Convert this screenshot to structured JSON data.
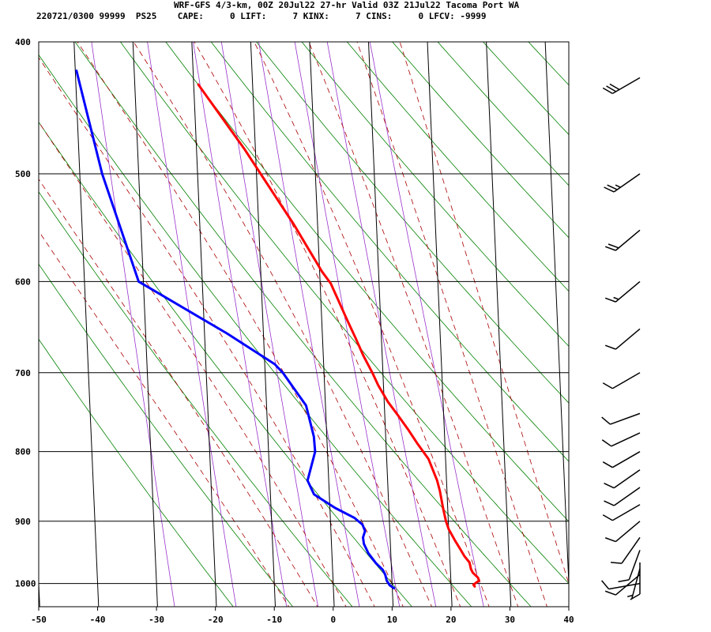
{
  "header": {
    "title": "WRF-GFS 4/3-km, 00Z 20Jul22 27-hr Valid 03Z 21Jul22 Tacoma Port WA",
    "subtitle": "220721/0300 99999  PS25    CAPE:     0 LIFT:     7 KINX:     7 CINS:     0 LFCV: -9999"
  },
  "chart_data": {
    "type": "line",
    "skew_t": true,
    "x_axis": {
      "range": [
        -50,
        40
      ],
      "ticks": [
        -50,
        -40,
        -30,
        -20,
        -10,
        0,
        10,
        20,
        30,
        40
      ]
    },
    "y_axis": {
      "scale": "log-pressure",
      "range": [
        1040,
        400
      ],
      "ticks": [
        400,
        500,
        600,
        700,
        800,
        900,
        1000
      ]
    },
    "grid": true,
    "series": [
      {
        "color": "#ff0000",
        "points": [
          [
            1005,
            24.0
          ],
          [
            1002,
            23.8
          ],
          [
            995,
            24.8
          ],
          [
            990,
            24.6
          ],
          [
            982,
            23.8
          ],
          [
            976,
            23.5
          ],
          [
            965,
            23.3
          ],
          [
            955,
            22.5
          ],
          [
            943,
            21.8
          ],
          [
            930,
            21.0
          ],
          [
            912,
            20.0
          ],
          [
            900,
            19.6
          ],
          [
            880,
            19.2
          ],
          [
            855,
            18.8
          ],
          [
            840,
            18.4
          ],
          [
            810,
            17.1
          ],
          [
            790,
            15.4
          ],
          [
            770,
            13.8
          ],
          [
            752,
            12.2
          ],
          [
            735,
            10.6
          ],
          [
            715,
            9.1
          ],
          [
            700,
            8.2
          ],
          [
            680,
            6.8
          ],
          [
            660,
            5.6
          ],
          [
            640,
            4.3
          ],
          [
            620,
            3.0
          ],
          [
            602,
            1.8
          ],
          [
            590,
            0.4
          ],
          [
            560,
            -2.5
          ],
          [
            545,
            -4.0
          ],
          [
            525,
            -6.3
          ],
          [
            500,
            -9.3
          ],
          [
            480,
            -11.8
          ],
          [
            455,
            -15.4
          ],
          [
            430,
            -19.2
          ]
        ]
      },
      {
        "color": "#0000ff",
        "points": [
          [
            1008,
            10.3
          ],
          [
            1003,
            9.6
          ],
          [
            995,
            9.1
          ],
          [
            985,
            8.9
          ],
          [
            977,
            8.5
          ],
          [
            966,
            7.4
          ],
          [
            950,
            6.2
          ],
          [
            935,
            5.5
          ],
          [
            925,
            5.4
          ],
          [
            915,
            5.8
          ],
          [
            905,
            5.4
          ],
          [
            895,
            4.1
          ],
          [
            880,
            0.9
          ],
          [
            860,
            -2.6
          ],
          [
            840,
            -3.6
          ],
          [
            800,
            -2.1
          ],
          [
            780,
            -2.2
          ],
          [
            740,
            -3.3
          ],
          [
            700,
            -7.0
          ],
          [
            690,
            -8.3
          ],
          [
            655,
            -16.2
          ],
          [
            600,
            -30.8
          ],
          [
            500,
            -36.2
          ],
          [
            420,
            -39.8
          ]
        ]
      }
    ],
    "isotherms": [
      -50,
      -40,
      -30,
      -20,
      -10,
      0,
      10,
      20,
      30,
      40
    ],
    "mixing_ratio_lines": [
      0.4,
      1,
      2,
      3,
      5,
      8,
      12,
      20
    ],
    "dry_adiabats": [
      -20,
      -10,
      0,
      10,
      20,
      30,
      40,
      50,
      60,
      70,
      80,
      90,
      100,
      110,
      120,
      130,
      140,
      150,
      160,
      170
    ],
    "moist_adiabats": [
      -10,
      -5,
      0,
      5,
      10,
      15,
      20,
      25,
      30,
      35,
      40
    ],
    "colors": {
      "isotherm": "#000000",
      "dry_adiabat": "#008000",
      "mixing_ratio": "#9933cc",
      "moist_adiabat": "#aa0000",
      "barb": "#000000"
    },
    "wind_barbs": [
      {
        "p": 1000,
        "dir": 260,
        "speed": 10
      },
      {
        "p": 985,
        "dir": 230,
        "speed": 10
      },
      {
        "p": 975,
        "dir": 195,
        "speed": 5
      },
      {
        "p": 965,
        "dir": 180,
        "speed": 10
      },
      {
        "p": 945,
        "dir": 200,
        "speed": 10
      },
      {
        "p": 925,
        "dir": 215,
        "speed": 10
      },
      {
        "p": 900,
        "dir": 230,
        "speed": 10
      },
      {
        "p": 875,
        "dir": 240,
        "speed": 10
      },
      {
        "p": 850,
        "dir": 235,
        "speed": 10
      },
      {
        "p": 825,
        "dir": 235,
        "speed": 10
      },
      {
        "p": 800,
        "dir": 240,
        "speed": 10
      },
      {
        "p": 775,
        "dir": 245,
        "speed": 10
      },
      {
        "p": 750,
        "dir": 250,
        "speed": 10
      },
      {
        "p": 700,
        "dir": 240,
        "speed": 10
      },
      {
        "p": 650,
        "dir": 230,
        "speed": 10
      },
      {
        "p": 600,
        "dir": 230,
        "speed": 15
      },
      {
        "p": 550,
        "dir": 230,
        "speed": 20
      },
      {
        "p": 500,
        "dir": 235,
        "speed": 25
      },
      {
        "p": 425,
        "dir": 240,
        "speed": 30
      }
    ]
  }
}
